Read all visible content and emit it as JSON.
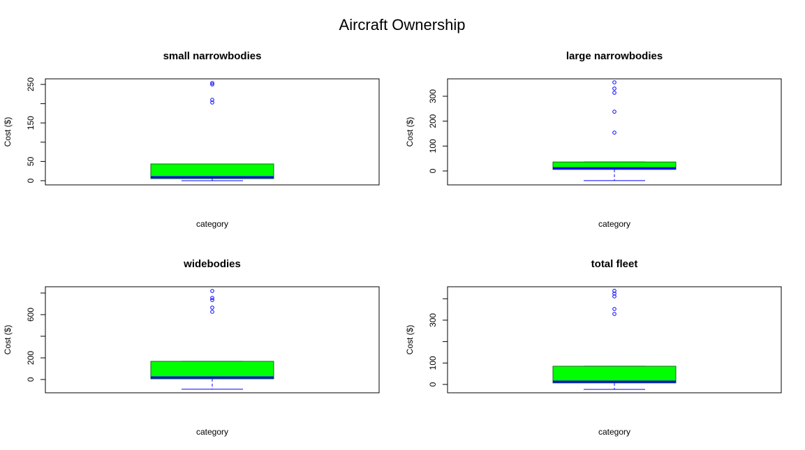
{
  "title": "Aircraft Ownership",
  "chart_data": [
    {
      "type": "box",
      "title": "small narrowbodies",
      "xlabel": "category",
      "ylabel": "Cost ($)",
      "ylim": [
        -10.9,
        264.5
      ],
      "yticks": [
        0,
        50,
        {
          "value": 100,
          "label": null
        },
        150,
        {
          "value": 200,
          "label": null
        },
        250
      ],
      "box": {
        "whislo": 0,
        "q1": 5.4,
        "median": 9,
        "q3": 43.5,
        "whishi": 43.5
      },
      "outliers": [
        253.6,
        250,
        210,
        203
      ],
      "color": "#00ff00",
      "line_color": "#0000ff"
    },
    {
      "type": "box",
      "title": "large narrowbodies",
      "xlabel": "category",
      "ylabel": "Cost ($)",
      "ylim": [
        -56,
        370
      ],
      "yticks": [
        0,
        100,
        200,
        300
      ],
      "box": {
        "whislo": -39,
        "q1": 6,
        "median": 11,
        "q3": 36,
        "whishi": 36
      },
      "outliers": [
        356,
        331,
        314,
        238,
        154
      ],
      "color": "#00ff00",
      "line_color": "#0000ff"
    },
    {
      "type": "box",
      "title": "widebodies",
      "xlabel": "category",
      "ylabel": "Cost ($)",
      "ylim": [
        -123,
        858
      ],
      "yticks": [
        0,
        200,
        {
          "value": 400,
          "label": null
        },
        600,
        {
          "value": 800,
          "label": null
        }
      ],
      "box": {
        "whislo": -90,
        "q1": 6,
        "median": 19,
        "q3": 168,
        "whishi": 168
      },
      "outliers": [
        819,
        755,
        735,
        665,
        626
      ],
      "color": "#00ff00",
      "line_color": "#0000ff"
    },
    {
      "type": "box",
      "title": "total fleet",
      "xlabel": "category",
      "ylabel": "Cost ($)",
      "ylim": [
        -39,
        456
      ],
      "yticks": [
        0,
        100,
        {
          "value": 200,
          "label": null
        },
        300,
        {
          "value": 400,
          "label": null
        }
      ],
      "box": {
        "whislo": -23,
        "q1": 7,
        "median": 13,
        "q3": 85,
        "whishi": 85
      },
      "outliers": [
        437,
        424,
        411,
        352,
        329
      ],
      "color": "#00ff00",
      "line_color": "#0000ff"
    }
  ]
}
